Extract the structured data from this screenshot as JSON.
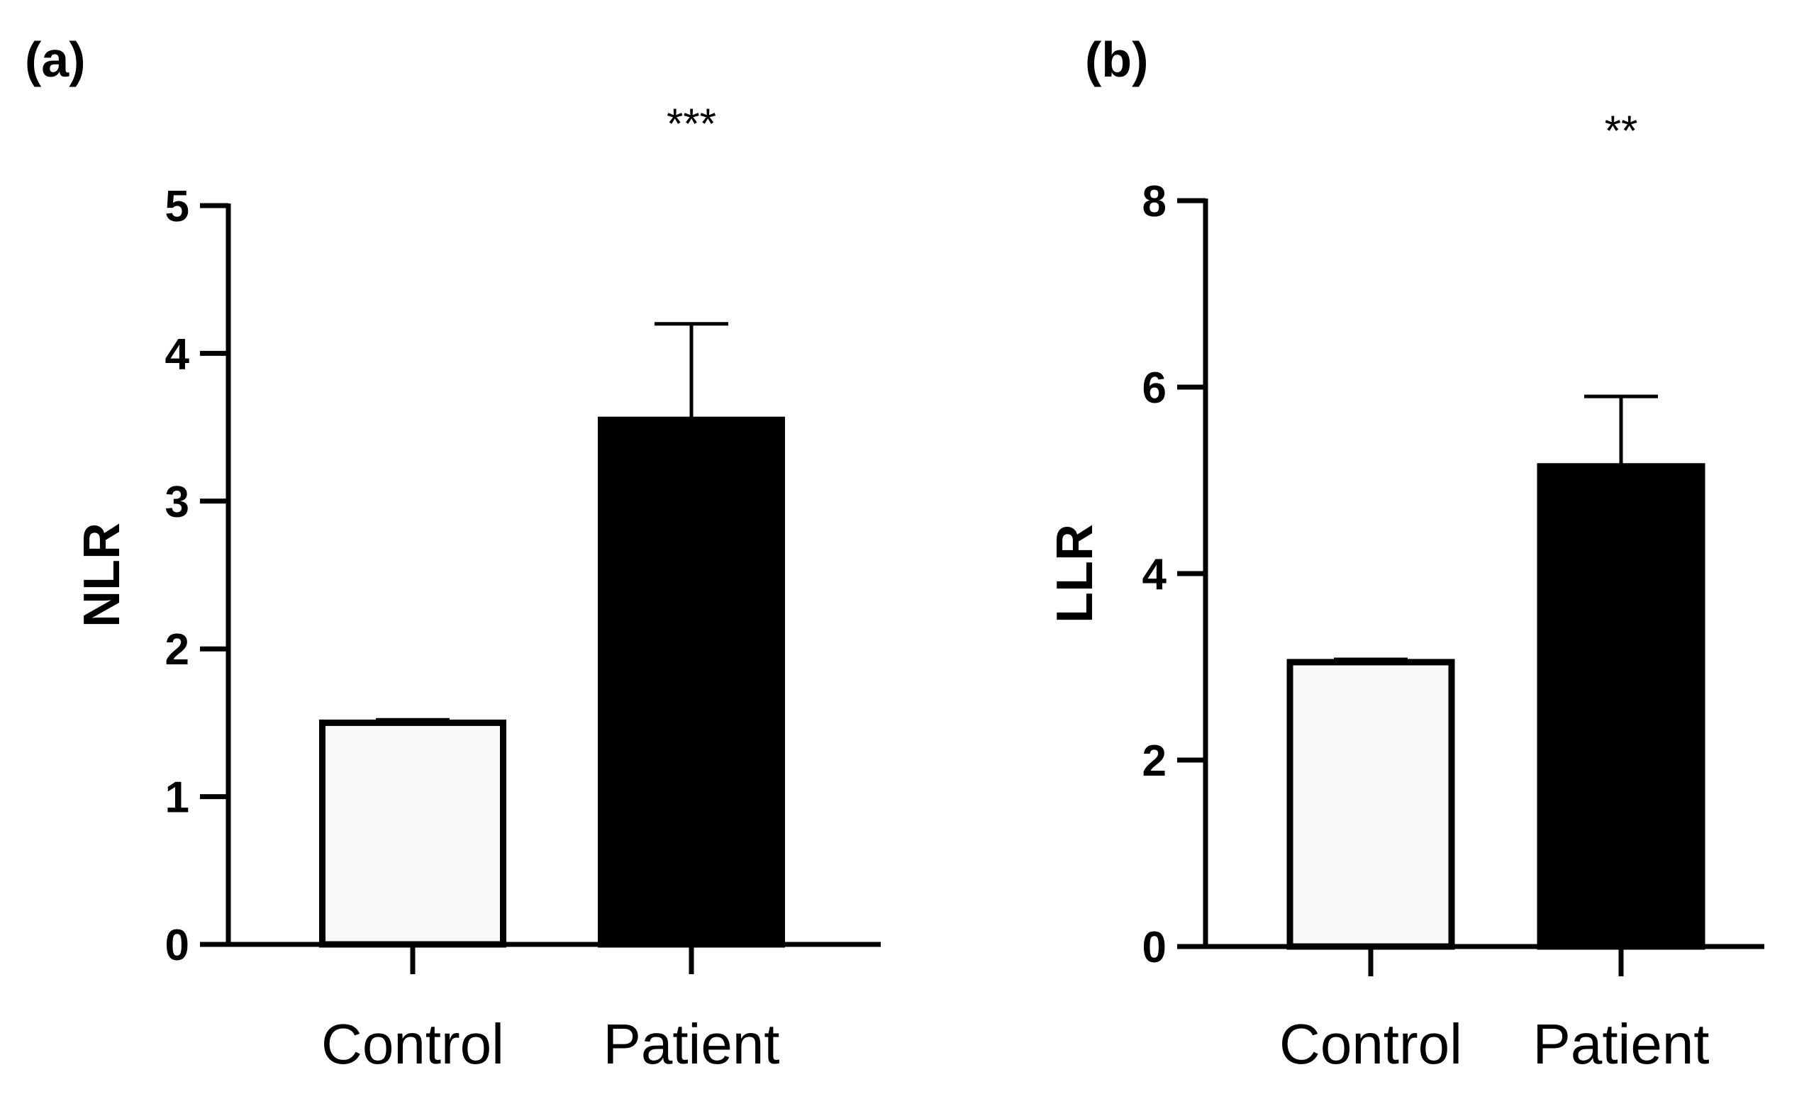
{
  "chart_data": [
    {
      "panel": "(a)",
      "type": "bar",
      "categories": [
        "Control",
        "Patient"
      ],
      "values": [
        1.5,
        3.55
      ],
      "errors": [
        0.02,
        0.65
      ],
      "fills": [
        "#f8f8f8",
        "#000000"
      ],
      "ylabel": "NLR",
      "xlabel": "",
      "ylim": [
        0,
        5
      ],
      "yticks": [
        "0",
        "1",
        "2",
        "3",
        "4",
        "5"
      ],
      "significance": "***",
      "grid": false
    },
    {
      "panel": "(b)",
      "type": "bar",
      "categories": [
        "Control",
        "Patient"
      ],
      "values": [
        3.05,
        5.15
      ],
      "errors": [
        0.03,
        0.75
      ],
      "fills": [
        "#f8f8f8",
        "#000000"
      ],
      "ylabel": "LLR",
      "xlabel": "",
      "ylim": [
        0,
        8
      ],
      "yticks": [
        "0",
        "2",
        "4",
        "6",
        "8"
      ],
      "significance": "**",
      "grid": false
    }
  ],
  "colors": {
    "axis": "#000000",
    "control_fill": "#f8f8f8",
    "patient_fill": "#000000"
  }
}
